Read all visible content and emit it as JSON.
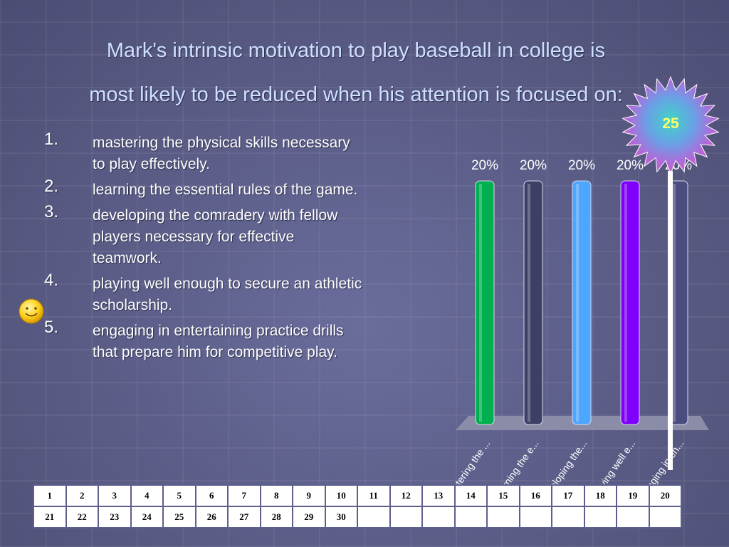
{
  "question": {
    "line1": "Mark's intrinsic motivation to play baseball in college is",
    "line2": "most likely to be reduced when his attention is focused on:"
  },
  "answers": [
    {
      "num": "1.",
      "text": "mastering the physical skills necessary to play effectively."
    },
    {
      "num": "2.",
      "text": "learning the essential rules of the game."
    },
    {
      "num": "3.",
      "text": "developing the comradery with fellow players necessary for effective teamwork."
    },
    {
      "num": "4.",
      "text": "playing well enough to secure an athletic scholarship."
    },
    {
      "num": "5.",
      "text": "engaging in entertaining practice drills that prepare him for competitive play."
    }
  ],
  "correct_answer_marker": {
    "icon": "smiley-icon",
    "answer_index": 4
  },
  "timer": {
    "value": "25",
    "icon": "starburst-icon"
  },
  "chart_data": {
    "type": "bar",
    "categories": [
      "mastering the ...",
      "learning the e...",
      "developing the...",
      "playing well e...",
      "engaging in en..."
    ],
    "values": [
      20,
      20,
      20,
      20,
      20
    ],
    "value_labels": [
      "20%",
      "20%",
      "20%",
      "20%",
      "20%"
    ],
    "colors": [
      "#00b050",
      "#3e3f66",
      "#4da6ff",
      "#8000ff",
      "#4b4c80"
    ],
    "ylim": [
      0,
      20
    ]
  },
  "response_grid": {
    "rows": [
      [
        "1",
        "2",
        "3",
        "4",
        "5",
        "6",
        "7",
        "8",
        "9",
        "10",
        "11",
        "12",
        "13",
        "14",
        "15",
        "16",
        "17",
        "18",
        "19",
        "20"
      ],
      [
        "21",
        "22",
        "23",
        "24",
        "25",
        "26",
        "27",
        "28",
        "29",
        "30",
        "",
        "",
        "",
        "",
        "",
        "",
        "",
        "",
        "",
        ""
      ]
    ]
  }
}
